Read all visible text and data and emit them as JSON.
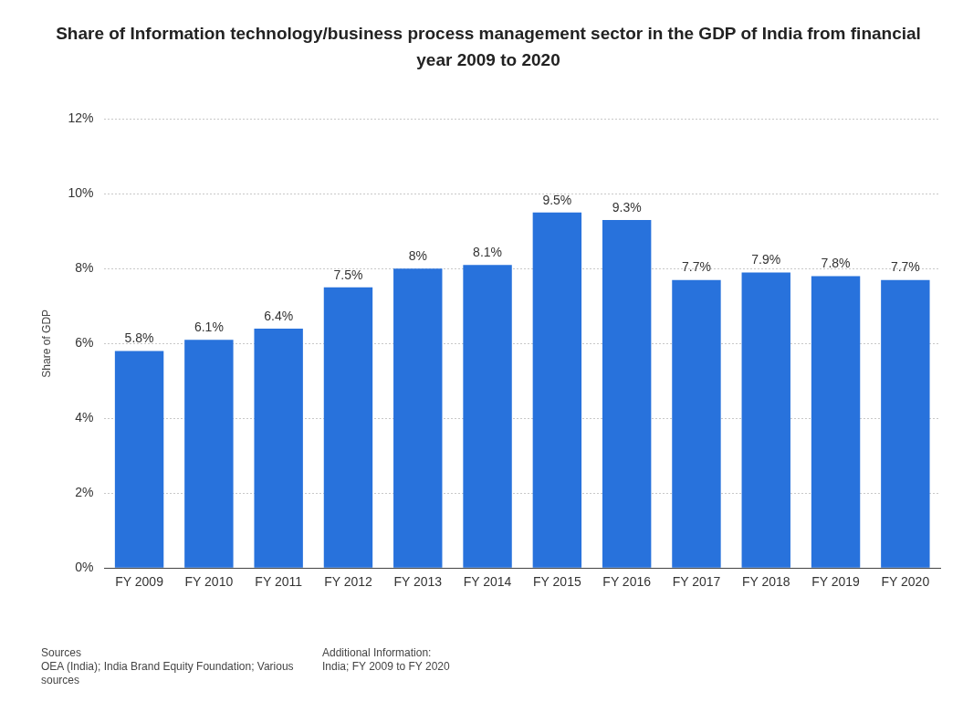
{
  "chart_data": {
    "type": "bar",
    "title": "Share of Information technology/business process management sector in the GDP of India from financial year 2009 to 2020",
    "ylabel": "Share of GDP",
    "categories": [
      "FY 2009",
      "FY 2010",
      "FY 2011",
      "FY 2012",
      "FY 2013",
      "FY 2014",
      "FY 2015",
      "FY 2016",
      "FY 2017",
      "FY 2018",
      "FY 2019",
      "FY 2020"
    ],
    "values": [
      5.8,
      6.1,
      6.4,
      7.5,
      8,
      8.1,
      9.5,
      9.3,
      7.7,
      7.9,
      7.8,
      7.7
    ],
    "value_labels": [
      "5.8%",
      "6.1%",
      "6.4%",
      "7.5%",
      "8%",
      "8.1%",
      "9.5%",
      "9.3%",
      "7.7%",
      "7.9%",
      "7.8%",
      "7.7%"
    ],
    "color": "#2872dc",
    "ylim": [
      0,
      12
    ],
    "yticks": [
      {
        "value": 0,
        "label": "0%"
      },
      {
        "value": 2,
        "label": "2%"
      },
      {
        "value": 4,
        "label": "4%"
      },
      {
        "value": 6,
        "label": "6%"
      },
      {
        "value": 8,
        "label": "8%"
      },
      {
        "value": 10,
        "label": "10%"
      },
      {
        "value": 12,
        "label": "12%"
      }
    ],
    "grid": "y",
    "annotations": [
      "Sources\nOEA (India); India Brand Equity Foundation; Various sources",
      "Additional Information:\nIndia; FY 2009 to FY 2020"
    ]
  }
}
